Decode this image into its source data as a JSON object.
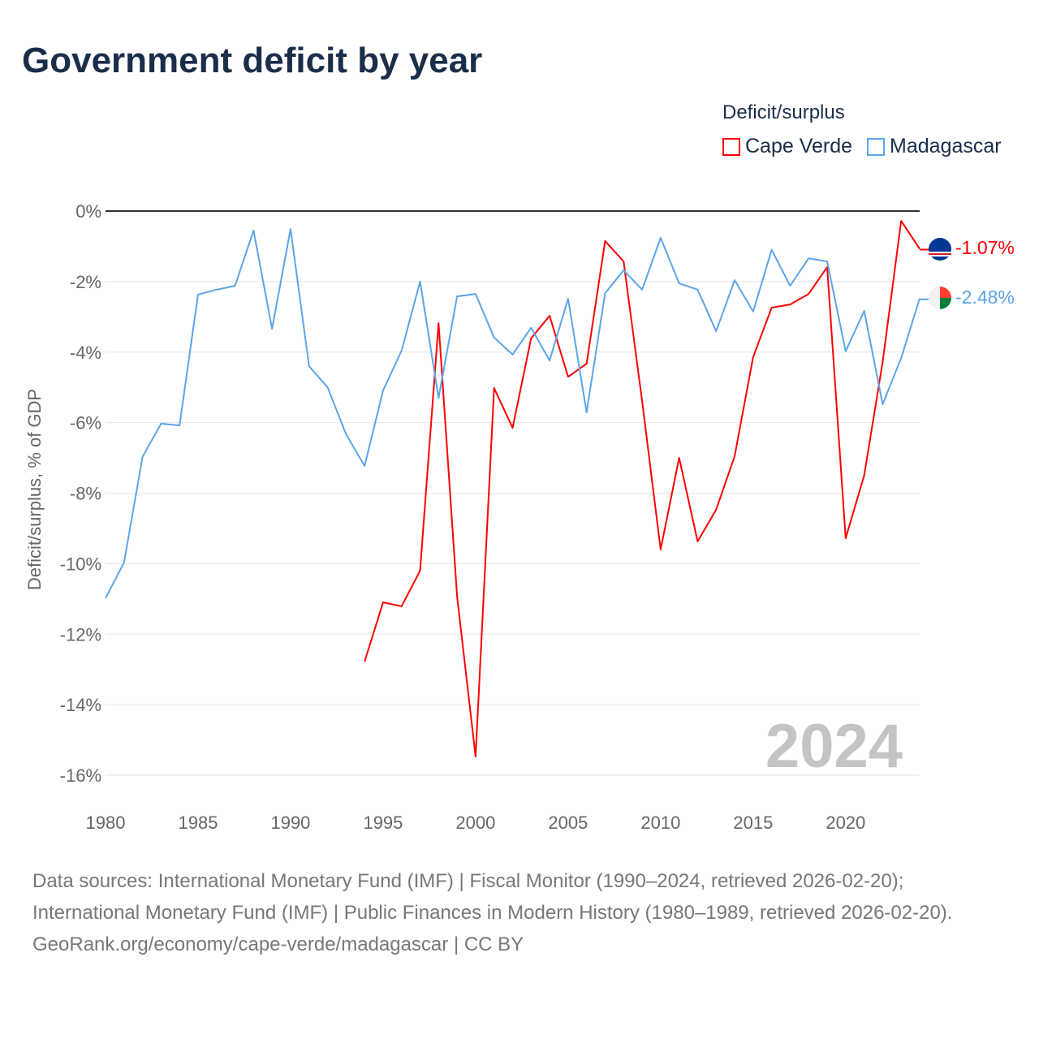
{
  "title": "Government deficit by year",
  "legend": {
    "title": "Deficit/surplus",
    "items": [
      {
        "name": "Cape Verde",
        "color": "#ff0000"
      },
      {
        "name": "Madagascar",
        "color": "#5aa5e8"
      }
    ]
  },
  "year_watermark": "2024",
  "end_labels": {
    "cape_verde": "-1.07%",
    "madagascar": "-2.48%"
  },
  "footer": {
    "sources": "Data sources: International Monetary Fund (IMF) | Fiscal Monitor (1990–2024, retrieved 2026-02-20); International Monetary Fund (IMF) | Public Finances in Modern History (1980–1989, retrieved 2026-02-20).",
    "credit": "GeoRank.org/economy/cape-verde/madagascar | CC BY"
  },
  "chart_data": {
    "type": "line",
    "title": "Government deficit by year",
    "xlabel": "",
    "ylabel": "Deficit/surplus, % of GDP",
    "xlim": [
      1980,
      2024
    ],
    "ylim": [
      -16,
      0
    ],
    "x_ticks": [
      "1980",
      "1985",
      "1990",
      "1995",
      "2000",
      "2005",
      "2010",
      "2015",
      "2020"
    ],
    "y_ticks": [
      "0%",
      "-2%",
      "-4%",
      "-6%",
      "-8%",
      "-10%",
      "-12%",
      "-14%",
      "-16%"
    ],
    "grid": true,
    "legend_position": "top-right",
    "series": [
      {
        "name": "Cape Verde",
        "color": "#ff0000",
        "start_year": 1994,
        "values": [
          -12.78,
          -11.1,
          -11.21,
          -10.2,
          -3.18,
          -10.93,
          -15.47,
          -5.02,
          -6.15,
          -3.61,
          -2.97,
          -4.7,
          -4.33,
          -0.85,
          -1.43,
          -5.39,
          -9.6,
          -7.0,
          -9.37,
          -8.47,
          -6.95,
          -4.14,
          -2.74,
          -2.65,
          -2.35,
          -1.59,
          -9.28,
          -7.5,
          -4.28,
          -0.28,
          -1.07
        ]
      },
      {
        "name": "Madagascar",
        "color": "#5aa5e8",
        "start_year": 1980,
        "values": [
          -10.98,
          -9.97,
          -6.97,
          -6.03,
          -6.08,
          -2.37,
          -2.23,
          -2.12,
          -0.55,
          -3.34,
          -0.51,
          -4.4,
          -5.0,
          -6.33,
          -7.23,
          -5.09,
          -3.96,
          -2.0,
          -5.3,
          -2.42,
          -2.35,
          -3.59,
          -4.07,
          -3.31,
          -4.24,
          -2.49,
          -5.71,
          -2.33,
          -1.68,
          -2.23,
          -0.76,
          -2.05,
          -2.23,
          -3.41,
          -1.96,
          -2.85,
          -1.1,
          -2.12,
          -1.34,
          -1.43,
          -3.98,
          -2.83,
          -5.48,
          -4.17,
          -2.48
        ]
      }
    ]
  }
}
